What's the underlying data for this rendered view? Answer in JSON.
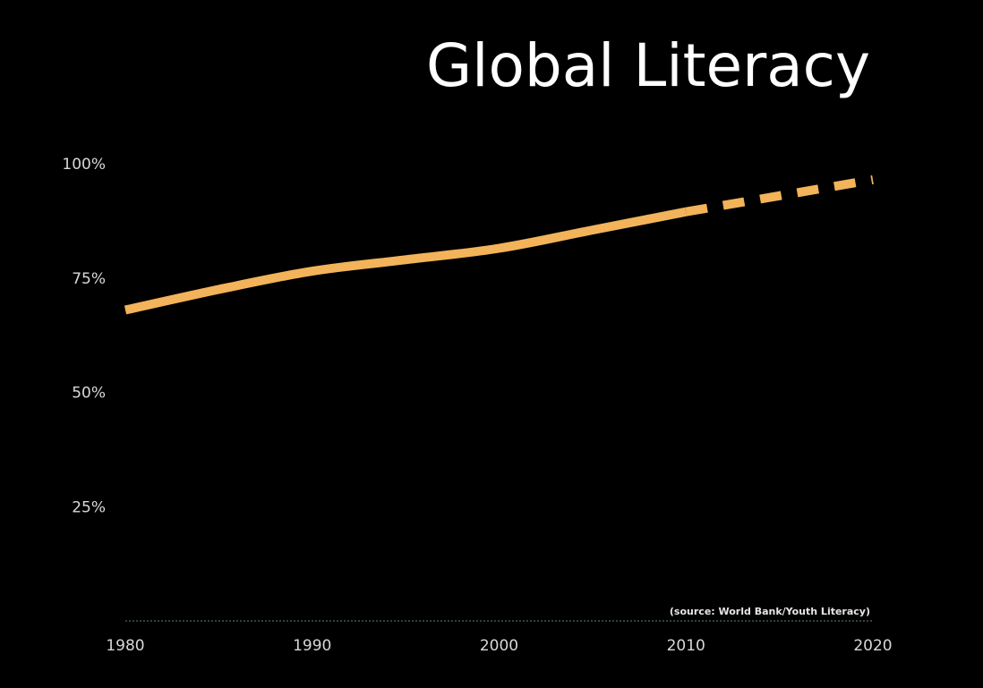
{
  "chart_data": {
    "type": "line",
    "title": "Global Literacy",
    "source": "(source: World Bank/Youth Literacy)",
    "xlabel": "",
    "ylabel": "",
    "x_ticks": [
      "1980",
      "1990",
      "2000",
      "2010",
      "2020"
    ],
    "y_ticks": [
      "100%",
      "75%",
      "50%",
      "25%"
    ],
    "xlim": [
      1980,
      2020
    ],
    "ylim": [
      0,
      100
    ],
    "grid": false,
    "legend": "none",
    "series": [
      {
        "style": "solid",
        "color": "#f2b35a",
        "x": [
          1980,
          1985,
          1990,
          1995,
          2000,
          2005,
          2010
        ],
        "y": [
          68,
          72.5,
          76.5,
          79,
          81.5,
          85.5,
          89.5
        ]
      },
      {
        "style": "dashed",
        "color": "#f2b35a",
        "x": [
          2010,
          2015,
          2020
        ],
        "y": [
          89.5,
          93,
          96.5
        ]
      }
    ]
  }
}
